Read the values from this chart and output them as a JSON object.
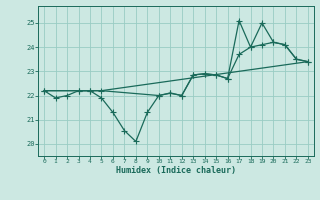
{
  "xlabel": "Humidex (Indice chaleur)",
  "bg_color": "#cce8e2",
  "grid_color": "#99ccc4",
  "line_color": "#1a6a5a",
  "xlim": [
    -0.5,
    23.5
  ],
  "ylim": [
    19.5,
    25.7
  ],
  "yticks": [
    20,
    21,
    22,
    23,
    24,
    25
  ],
  "xticks": [
    0,
    1,
    2,
    3,
    4,
    5,
    6,
    7,
    8,
    9,
    10,
    11,
    12,
    13,
    14,
    15,
    16,
    17,
    18,
    19,
    20,
    21,
    22,
    23
  ],
  "line1_x": [
    0,
    1,
    2,
    3,
    4,
    5,
    6,
    7,
    8,
    9,
    10,
    11,
    12,
    13,
    14,
    15,
    16,
    17,
    18,
    19,
    20,
    21,
    22,
    23
  ],
  "line1_y": [
    22.2,
    21.9,
    22.0,
    22.2,
    22.2,
    21.9,
    21.3,
    20.55,
    20.1,
    21.3,
    22.0,
    22.1,
    22.0,
    22.85,
    22.9,
    22.85,
    22.7,
    23.7,
    24.0,
    24.1,
    24.2,
    24.1,
    23.5,
    23.4
  ],
  "line2_x": [
    0,
    4,
    5,
    23
  ],
  "line2_y": [
    22.2,
    22.2,
    22.2,
    23.4
  ],
  "line3_x": [
    0,
    3,
    4,
    5,
    10,
    11,
    12,
    13,
    14,
    15,
    16,
    17,
    18,
    19,
    20,
    21,
    22,
    23
  ],
  "line3_y": [
    22.2,
    22.2,
    22.2,
    22.2,
    22.0,
    22.1,
    22.0,
    22.85,
    22.9,
    22.85,
    22.7,
    25.1,
    24.0,
    25.0,
    24.2,
    24.1,
    23.5,
    23.4
  ]
}
